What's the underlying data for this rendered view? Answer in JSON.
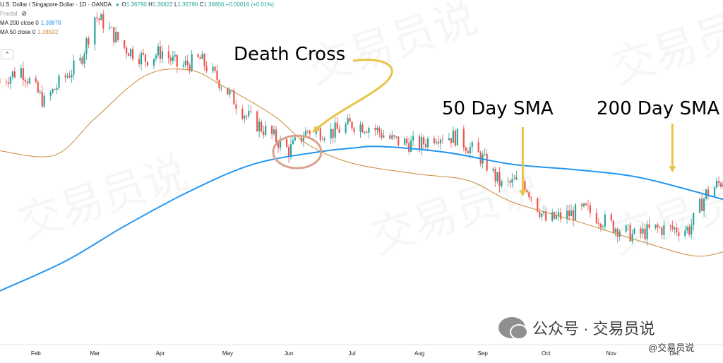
{
  "legend": {
    "symbol": "U.S. Dollar / Singapore Dollar · 1D · OANDA",
    "ohlc": [
      {
        "key": "O",
        "value": "1.36790"
      },
      {
        "key": "H",
        "value": "1.36822"
      },
      {
        "key": "L",
        "value": "1.36790"
      },
      {
        "key": "C",
        "value": "1.36806"
      },
      {
        "key": "",
        "value": "+0.00016 (+0.01%)"
      }
    ],
    "fractal_label": "Fractal",
    "ma200_label": "MA 200 close 0",
    "ma200_value": "1.38878",
    "ma50_label": "MA 50 close 0",
    "ma50_value": "1.38502",
    "collapse_glyph": "^"
  },
  "annotations": {
    "death_cross": "Death Cross",
    "sma50": "50 Day SMA",
    "sma200": "200 Day SMA"
  },
  "watermark": {
    "main": "公众号 · 交易员说",
    "sub": "@交易员说",
    "background": "交易员说"
  },
  "colors": {
    "up": "#26a69a",
    "down": "#ef5350",
    "ma200": "#2196f3",
    "ma50": "#c98a3a",
    "arrow": "#e8c547",
    "circle": "#d9a38f"
  },
  "chart_data": {
    "type": "candlestick",
    "title": "U.S. Dollar / Singapore Dollar · 1D · OANDA",
    "x_axis": {
      "range": [
        "2021-01-15",
        "2021-12-24"
      ],
      "tick_labels": [
        {
          "label": "Feb",
          "date": "2021-02-01"
        },
        {
          "label": "Mar",
          "date": "2021-03-01"
        },
        {
          "label": "Apr",
          "date": "2021-04-01"
        },
        {
          "label": "May",
          "date": "2021-05-03"
        },
        {
          "label": "Jun",
          "date": "2021-06-01"
        },
        {
          "label": "Jul",
          "date": "2021-07-01"
        },
        {
          "label": "Aug",
          "date": "2021-08-02"
        },
        {
          "label": "Sep",
          "date": "2021-09-01"
        },
        {
          "label": "Oct",
          "date": "2021-10-01"
        },
        {
          "label": "Nov",
          "date": "2021-11-01"
        },
        {
          "label": "Dec",
          "date": "2021-12-01"
        }
      ]
    },
    "y_range": [
      1.345,
      1.4085
    ],
    "price_path": [
      {
        "date": "2021-01-15",
        "close": 1.3938
      },
      {
        "date": "2021-01-25",
        "close": 1.3962
      },
      {
        "date": "2021-02-05",
        "close": 1.39
      },
      {
        "date": "2021-02-12",
        "close": 1.3935
      },
      {
        "date": "2021-02-22",
        "close": 1.3975
      },
      {
        "date": "2021-03-01",
        "close": 1.406
      },
      {
        "date": "2021-03-05",
        "close": 1.4048
      },
      {
        "date": "2021-03-15",
        "close": 1.4002
      },
      {
        "date": "2021-03-25",
        "close": 1.398
      },
      {
        "date": "2021-04-02",
        "close": 1.3995
      },
      {
        "date": "2021-04-10",
        "close": 1.3965
      },
      {
        "date": "2021-04-20",
        "close": 1.398
      },
      {
        "date": "2021-04-30",
        "close": 1.3935
      },
      {
        "date": "2021-05-12",
        "close": 1.3875
      },
      {
        "date": "2021-05-25",
        "close": 1.3835
      },
      {
        "date": "2021-06-01",
        "close": 1.381
      },
      {
        "date": "2021-06-10",
        "close": 1.3848
      },
      {
        "date": "2021-06-22",
        "close": 1.3845
      },
      {
        "date": "2021-07-01",
        "close": 1.386
      },
      {
        "date": "2021-07-10",
        "close": 1.3855
      },
      {
        "date": "2021-07-20",
        "close": 1.383
      },
      {
        "date": "2021-08-02",
        "close": 1.382
      },
      {
        "date": "2021-08-10",
        "close": 1.384
      },
      {
        "date": "2021-08-20",
        "close": 1.3835
      },
      {
        "date": "2021-09-01",
        "close": 1.3795
      },
      {
        "date": "2021-09-10",
        "close": 1.3745
      },
      {
        "date": "2021-09-20",
        "close": 1.3755
      },
      {
        "date": "2021-10-01",
        "close": 1.368
      },
      {
        "date": "2021-10-10",
        "close": 1.369
      },
      {
        "date": "2021-10-20",
        "close": 1.37
      },
      {
        "date": "2021-11-01",
        "close": 1.3672
      },
      {
        "date": "2021-11-12",
        "close": 1.3652
      },
      {
        "date": "2021-11-22",
        "close": 1.3665
      },
      {
        "date": "2021-12-01",
        "close": 1.3665
      },
      {
        "date": "2021-12-08",
        "close": 1.3665
      },
      {
        "date": "2021-12-16",
        "close": 1.373
      },
      {
        "date": "2021-12-24",
        "close": 1.3755
      }
    ],
    "series": [
      {
        "name": "MA 200 close 0",
        "points": [
          {
            "date": "2021-01-15",
            "value": 1.355
          },
          {
            "date": "2021-02-15",
            "value": 1.3605
          },
          {
            "date": "2021-03-15",
            "value": 1.367
          },
          {
            "date": "2021-04-15",
            "value": 1.3735
          },
          {
            "date": "2021-05-15",
            "value": 1.3785
          },
          {
            "date": "2021-06-15",
            "value": 1.3808
          },
          {
            "date": "2021-07-01",
            "value": 1.3815
          },
          {
            "date": "2021-07-15",
            "value": 1.3818
          },
          {
            "date": "2021-08-15",
            "value": 1.3807
          },
          {
            "date": "2021-09-15",
            "value": 1.3785
          },
          {
            "date": "2021-10-15",
            "value": 1.3775
          },
          {
            "date": "2021-11-15",
            "value": 1.376
          },
          {
            "date": "2021-12-24",
            "value": 1.372
          }
        ]
      },
      {
        "name": "MA 50 close 0",
        "points": [
          {
            "date": "2021-01-15",
            "value": 1.381
          },
          {
            "date": "2021-02-10",
            "value": 1.3802
          },
          {
            "date": "2021-03-01",
            "value": 1.387
          },
          {
            "date": "2021-03-25",
            "value": 1.395
          },
          {
            "date": "2021-04-15",
            "value": 1.396
          },
          {
            "date": "2021-05-01",
            "value": 1.393
          },
          {
            "date": "2021-05-25",
            "value": 1.3875
          },
          {
            "date": "2021-06-10",
            "value": 1.3822
          },
          {
            "date": "2021-07-01",
            "value": 1.3787
          },
          {
            "date": "2021-08-01",
            "value": 1.3767
          },
          {
            "date": "2021-08-25",
            "value": 1.3755
          },
          {
            "date": "2021-09-15",
            "value": 1.3715
          },
          {
            "date": "2021-10-15",
            "value": 1.368
          },
          {
            "date": "2021-11-15",
            "value": 1.3642
          },
          {
            "date": "2021-12-10",
            "value": 1.3615
          },
          {
            "date": "2021-12-24",
            "value": 1.3622
          }
        ]
      }
    ],
    "annotations": [
      {
        "text": "Death Cross",
        "date": "2021-06-05",
        "value": 1.3808
      },
      {
        "text": "50 Day SMA",
        "date": "2021-09-20",
        "value": 1.3725
      },
      {
        "text": "200 Day SMA",
        "date": "2021-11-30",
        "value": 1.377
      }
    ],
    "grid": false,
    "legend_placement": "top-left"
  }
}
